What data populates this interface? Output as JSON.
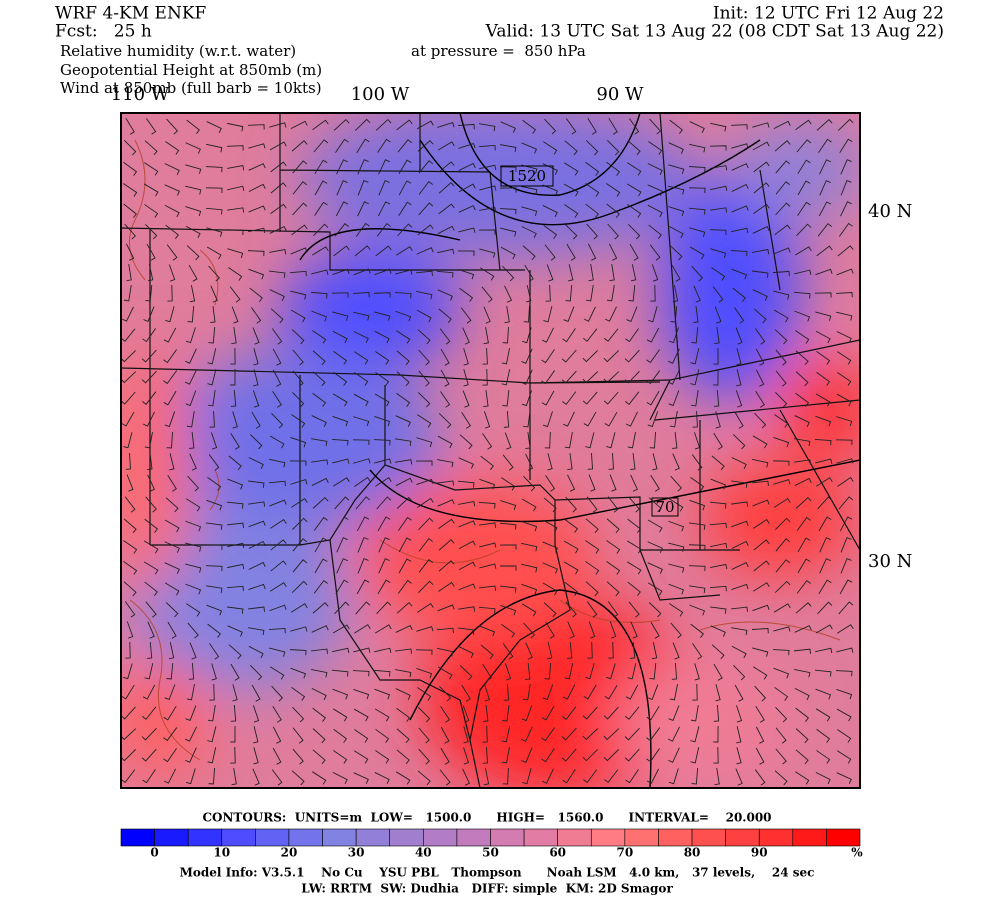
{
  "header": {
    "model": "WRF 4-KM ENKF",
    "forecast": "Fcst:   25 h",
    "fields": [
      "Relative humidity (w.r.t. water)",
      "Geopotential Height at 850mb (m)",
      "Wind at 850mb (full barb = 10kts)"
    ],
    "init": "Init: 12 UTC Fri 12 Aug 22",
    "valid": "Valid: 13 UTC Sat 13 Aug 22 (08 CDT Sat 13 Aug 22)",
    "pressure": "at pressure =  850 hPa"
  },
  "map": {
    "longitude_labels": [
      "110 W",
      "100 W",
      "90 W"
    ],
    "latitude_labels": [
      "40 N",
      "30 N"
    ],
    "contour_labels": [
      "1520",
      "70"
    ]
  },
  "footer": {
    "contours": "CONTOURS:  UNITS=m  LOW=   1500.0      HIGH=   1560.0      INTERVAL=    20.000",
    "colorbar": {
      "colors": [
        "#0000ff",
        "#1a1aff",
        "#3333ff",
        "#4d4dff",
        "#6262f4",
        "#7373ec",
        "#8282e2",
        "#9280d8",
        "#a27ecf",
        "#b27cc6",
        "#c27cbd",
        "#d27cb2",
        "#e27ca4",
        "#f07c94",
        "#ff7c84",
        "#ff7070",
        "#ff6060",
        "#ff5050",
        "#ff4040",
        "#ff3030",
        "#ff1a1a",
        "#ff0000"
      ],
      "labels": [
        "0",
        "10",
        "20",
        "30",
        "40",
        "50",
        "60",
        "70",
        "80",
        "90"
      ],
      "unit": "%"
    },
    "model_info": "Model Info: V3.5.1    No Cu    YSU PBL   Thompson      Noah LSM   4.0 km,   37 levels,    24 sec",
    "physics": "LW: RRTM  SW: Dudhia   DIFF: simple  KM: 2D Smagor"
  }
}
